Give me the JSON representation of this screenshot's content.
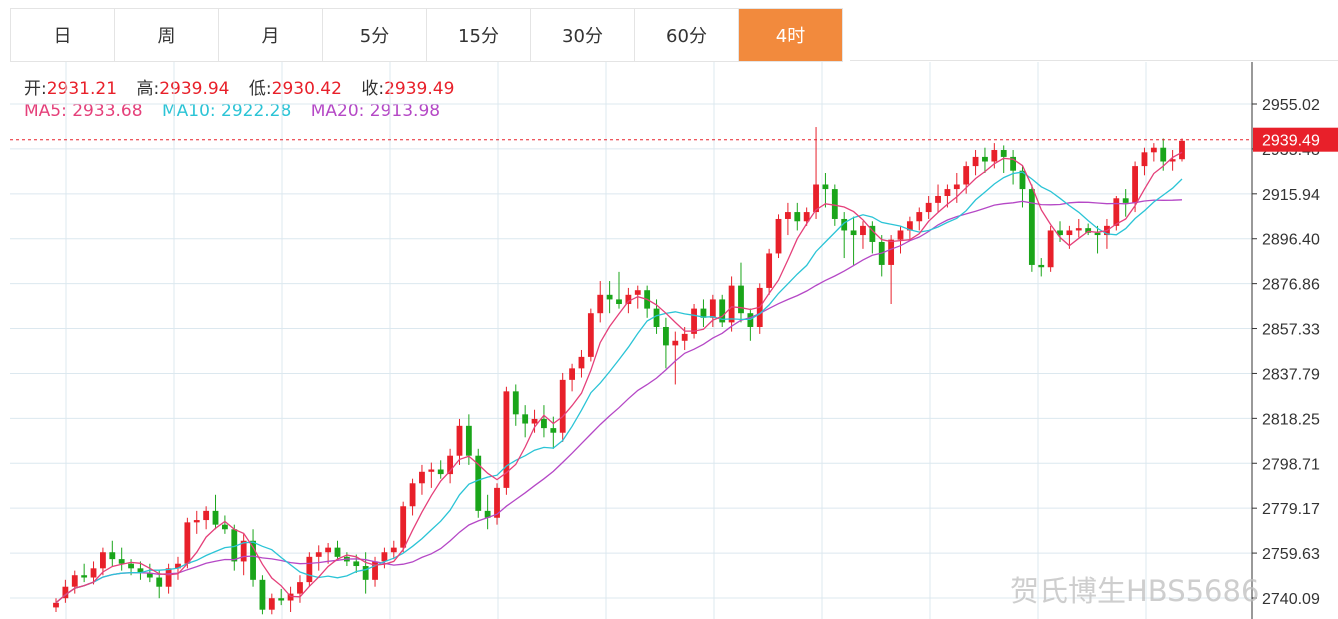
{
  "tabs": [
    {
      "label": "日",
      "active": false
    },
    {
      "label": "周",
      "active": false
    },
    {
      "label": "月",
      "active": false
    },
    {
      "label": "5分",
      "active": false
    },
    {
      "label": "15分",
      "active": false
    },
    {
      "label": "30分",
      "active": false
    },
    {
      "label": "60分",
      "active": false
    },
    {
      "label": "4时",
      "active": true
    }
  ],
  "ohlc": {
    "open_label": "开:",
    "open": "2931.21",
    "high_label": "高:",
    "high": "2939.94",
    "low_label": "低:",
    "low": "2930.42",
    "close_label": "收:",
    "close": "2939.49"
  },
  "ma": {
    "ma5": "MA5: 2933.68",
    "ma10": "MA10: 2922.28",
    "ma20": "MA20: 2913.98"
  },
  "watermark": "贺氏博生HBS5686",
  "colors": {
    "up": "#e8202a",
    "down": "#1aa51a",
    "ma5": "#e5407a",
    "ma10": "#2bc4d6",
    "ma20": "#b548c6",
    "active_tab": "#f28a3d",
    "grid": "#dce8ef"
  },
  "chart_data": {
    "type": "candlestick",
    "y_ticks": [
      "2955.02",
      "2935.48",
      "2915.94",
      "2896.40",
      "2876.86",
      "2857.33",
      "2837.79",
      "2818.25",
      "2798.71",
      "2779.17",
      "2759.63",
      "2740.09"
    ],
    "ylim": [
      2740.09,
      2955.02
    ],
    "last_price": 2939.49,
    "grid": true,
    "candles": [
      [
        2736,
        2740,
        2734,
        2738
      ],
      [
        2740,
        2748,
        2738,
        2745
      ],
      [
        2745,
        2752,
        2742,
        2750
      ],
      [
        2750,
        2755,
        2747,
        2749
      ],
      [
        2749,
        2756,
        2746,
        2753
      ],
      [
        2753,
        2762,
        2750,
        2760
      ],
      [
        2760,
        2765,
        2754,
        2757
      ],
      [
        2757,
        2762,
        2752,
        2755
      ],
      [
        2755,
        2757,
        2750,
        2753
      ],
      [
        2753,
        2756,
        2748,
        2751
      ],
      [
        2751,
        2755,
        2747,
        2749
      ],
      [
        2749,
        2752,
        2740,
        2745
      ],
      [
        2745,
        2755,
        2742,
        2753
      ],
      [
        2753,
        2758,
        2748,
        2755
      ],
      [
        2755,
        2775,
        2753,
        2773
      ],
      [
        2773,
        2778,
        2768,
        2774
      ],
      [
        2774,
        2780,
        2770,
        2778
      ],
      [
        2778,
        2785,
        2770,
        2772
      ],
      [
        2772,
        2776,
        2768,
        2770
      ],
      [
        2770,
        2772,
        2752,
        2756
      ],
      [
        2756,
        2768,
        2750,
        2765
      ],
      [
        2765,
        2770,
        2745,
        2748
      ],
      [
        2748,
        2750,
        2733,
        2735
      ],
      [
        2735,
        2742,
        2733,
        2740
      ],
      [
        2740,
        2744,
        2737,
        2739
      ],
      [
        2739,
        2745,
        2734,
        2742
      ],
      [
        2742,
        2750,
        2738,
        2747
      ],
      [
        2747,
        2760,
        2745,
        2758
      ],
      [
        2758,
        2763,
        2752,
        2760
      ],
      [
        2760,
        2764,
        2755,
        2762
      ],
      [
        2762,
        2765,
        2757,
        2758
      ],
      [
        2758,
        2760,
        2754,
        2756
      ],
      [
        2756,
        2759,
        2751,
        2754
      ],
      [
        2754,
        2760,
        2742,
        2748
      ],
      [
        2748,
        2758,
        2745,
        2756
      ],
      [
        2756,
        2762,
        2753,
        2760
      ],
      [
        2760,
        2765,
        2757,
        2762
      ],
      [
        2762,
        2782,
        2760,
        2780
      ],
      [
        2780,
        2792,
        2776,
        2790
      ],
      [
        2790,
        2798,
        2785,
        2795
      ],
      [
        2795,
        2799,
        2788,
        2796
      ],
      [
        2796,
        2800,
        2792,
        2794
      ],
      [
        2794,
        2805,
        2790,
        2802
      ],
      [
        2802,
        2818,
        2798,
        2815
      ],
      [
        2815,
        2820,
        2798,
        2802
      ],
      [
        2802,
        2805,
        2775,
        2778
      ],
      [
        2778,
        2785,
        2770,
        2775
      ],
      [
        2775,
        2790,
        2772,
        2788
      ],
      [
        2788,
        2832,
        2785,
        2830
      ],
      [
        2830,
        2833,
        2815,
        2820
      ],
      [
        2820,
        2824,
        2810,
        2816
      ],
      [
        2816,
        2822,
        2812,
        2818
      ],
      [
        2818,
        2824,
        2810,
        2814
      ],
      [
        2814,
        2819,
        2805,
        2812
      ],
      [
        2812,
        2838,
        2808,
        2835
      ],
      [
        2835,
        2842,
        2830,
        2840
      ],
      [
        2840,
        2848,
        2836,
        2845
      ],
      [
        2845,
        2866,
        2843,
        2864
      ],
      [
        2864,
        2878,
        2860,
        2872
      ],
      [
        2872,
        2878,
        2864,
        2870
      ],
      [
        2870,
        2882,
        2866,
        2868
      ],
      [
        2868,
        2875,
        2864,
        2872
      ],
      [
        2872,
        2876,
        2866,
        2874
      ],
      [
        2874,
        2876,
        2862,
        2866
      ],
      [
        2866,
        2870,
        2855,
        2858
      ],
      [
        2858,
        2862,
        2840,
        2850
      ],
      [
        2850,
        2856,
        2833,
        2852
      ],
      [
        2852,
        2858,
        2848,
        2855
      ],
      [
        2855,
        2868,
        2853,
        2866
      ],
      [
        2866,
        2870,
        2858,
        2862
      ],
      [
        2862,
        2872,
        2858,
        2870
      ],
      [
        2870,
        2872,
        2858,
        2860
      ],
      [
        2860,
        2880,
        2856,
        2876
      ],
      [
        2876,
        2886,
        2860,
        2864
      ],
      [
        2864,
        2866,
        2852,
        2858
      ],
      [
        2858,
        2877,
        2855,
        2875
      ],
      [
        2875,
        2892,
        2872,
        2890
      ],
      [
        2890,
        2907,
        2888,
        2905
      ],
      [
        2905,
        2912,
        2898,
        2908
      ],
      [
        2908,
        2912,
        2900,
        2904
      ],
      [
        2904,
        2910,
        2902,
        2908
      ],
      [
        2908,
        2945,
        2905,
        2920
      ],
      [
        2920,
        2925,
        2910,
        2918
      ],
      [
        2918,
        2920,
        2902,
        2905
      ],
      [
        2905,
        2908,
        2888,
        2900
      ],
      [
        2900,
        2906,
        2885,
        2898
      ],
      [
        2898,
        2904,
        2892,
        2902
      ],
      [
        2902,
        2904,
        2890,
        2895
      ],
      [
        2895,
        2898,
        2880,
        2885
      ],
      [
        2885,
        2898,
        2868,
        2896
      ],
      [
        2896,
        2902,
        2890,
        2900
      ],
      [
        2900,
        2906,
        2896,
        2904
      ],
      [
        2904,
        2910,
        2900,
        2908
      ],
      [
        2908,
        2915,
        2905,
        2912
      ],
      [
        2912,
        2920,
        2908,
        2915
      ],
      [
        2915,
        2920,
        2910,
        2918
      ],
      [
        2918,
        2925,
        2912,
        2920
      ],
      [
        2920,
        2930,
        2916,
        2928
      ],
      [
        2928,
        2935,
        2924,
        2932
      ],
      [
        2932,
        2936,
        2925,
        2930
      ],
      [
        2930,
        2938,
        2927,
        2935
      ],
      [
        2935,
        2937,
        2925,
        2932
      ],
      [
        2932,
        2935,
        2920,
        2926
      ],
      [
        2926,
        2928,
        2910,
        2918
      ],
      [
        2918,
        2920,
        2882,
        2885
      ],
      [
        2885,
        2888,
        2880,
        2884
      ],
      [
        2884,
        2902,
        2882,
        2900
      ],
      [
        2900,
        2904,
        2895,
        2898
      ],
      [
        2898,
        2902,
        2892,
        2900
      ],
      [
        2900,
        2905,
        2897,
        2901
      ],
      [
        2901,
        2903,
        2898,
        2899
      ],
      [
        2899,
        2902,
        2890,
        2898
      ],
      [
        2898,
        2905,
        2892,
        2902
      ],
      [
        2902,
        2915,
        2900,
        2914
      ],
      [
        2914,
        2918,
        2906,
        2912
      ],
      [
        2912,
        2930,
        2908,
        2928
      ],
      [
        2928,
        2936,
        2924,
        2934
      ],
      [
        2934,
        2938,
        2930,
        2936
      ],
      [
        2936,
        2940,
        2926,
        2930
      ],
      [
        2930,
        2935,
        2926,
        2931
      ],
      [
        2931,
        2940,
        2930,
        2939
      ]
    ]
  }
}
